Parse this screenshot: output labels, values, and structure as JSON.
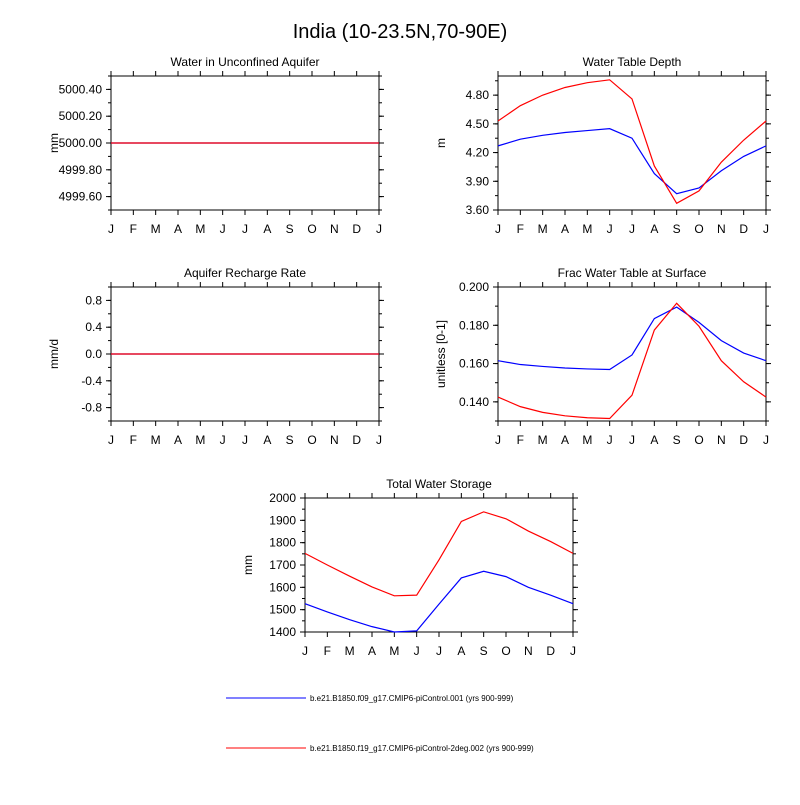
{
  "page_title": "India (10-23.5N,70-90E)",
  "colors": {
    "series1": "#0000ff",
    "series2": "#ff0000",
    "axis": "#000000"
  },
  "legend": [
    {
      "label": "b.e21.B1850.f09_g17.CMIP6-piControl.001 (yrs 900-999)",
      "color": "#0000ff"
    },
    {
      "label": "b.e21.B1850.f19_g17.CMIP6-piControl-2deg.002 (yrs 900-999)",
      "color": "#ff0000"
    }
  ],
  "chart_data": [
    {
      "type": "line",
      "title": "Water in Unconfined Aquifer",
      "ylabel": "mm",
      "xlabel": "",
      "categories": [
        "J",
        "F",
        "M",
        "A",
        "M",
        "J",
        "J",
        "A",
        "S",
        "O",
        "N",
        "D",
        "J"
      ],
      "ylim": [
        4999.5,
        5000.5
      ],
      "yticks": [
        4999.6,
        4999.8,
        5000.0,
        5000.2,
        5000.4
      ],
      "ytick_labels": [
        "4999.60",
        "4999.80",
        "5000.00",
        "5000.20",
        "5000.40"
      ],
      "series": [
        {
          "name": "b.e21.B1850.f09_g17.CMIP6-piControl.001 (yrs 900-999)",
          "color": "#0000ff",
          "values": [
            5000,
            5000,
            5000,
            5000,
            5000,
            5000,
            5000,
            5000,
            5000,
            5000,
            5000,
            5000,
            5000
          ]
        },
        {
          "name": "b.e21.B1850.f19_g17.CMIP6-piControl-2deg.002 (yrs 900-999)",
          "color": "#ff0000",
          "values": [
            5000,
            5000,
            5000,
            5000,
            5000,
            5000,
            5000,
            5000,
            5000,
            5000,
            5000,
            5000,
            5000
          ]
        }
      ]
    },
    {
      "type": "line",
      "title": "Water Table Depth",
      "ylabel": "m",
      "xlabel": "",
      "categories": [
        "J",
        "F",
        "M",
        "A",
        "M",
        "J",
        "J",
        "A",
        "S",
        "O",
        "N",
        "D",
        "J"
      ],
      "ylim": [
        3.6,
        5.0
      ],
      "yticks": [
        3.6,
        3.9,
        4.2,
        4.5,
        4.8
      ],
      "ytick_labels": [
        "3.60",
        "3.90",
        "4.20",
        "4.50",
        "4.80"
      ],
      "series": [
        {
          "name": "b.e21.B1850.f09_g17.CMIP6-piControl.001 (yrs 900-999)",
          "color": "#0000ff",
          "values": [
            4.27,
            4.34,
            4.38,
            4.41,
            4.43,
            4.45,
            4.35,
            3.98,
            3.77,
            3.83,
            4.01,
            4.16,
            4.27
          ]
        },
        {
          "name": "b.e21.B1850.f19_g17.CMIP6-piControl-2deg.002 (yrs 900-999)",
          "color": "#ff0000",
          "values": [
            4.53,
            4.69,
            4.8,
            4.88,
            4.93,
            4.96,
            4.76,
            4.06,
            3.67,
            3.8,
            4.1,
            4.33,
            4.53
          ]
        }
      ]
    },
    {
      "type": "line",
      "title": "Aquifer Recharge Rate",
      "ylabel": "mm/d",
      "xlabel": "",
      "categories": [
        "J",
        "F",
        "M",
        "A",
        "M",
        "J",
        "J",
        "A",
        "S",
        "O",
        "N",
        "D",
        "J"
      ],
      "ylim": [
        -1.0,
        1.0
      ],
      "yticks": [
        -0.8,
        -0.4,
        0.0,
        0.4,
        0.8
      ],
      "ytick_labels": [
        "-0.8",
        "-0.4",
        "0.0",
        "0.4",
        "0.8"
      ],
      "series": [
        {
          "name": "b.e21.B1850.f09_g17.CMIP6-piControl.001 (yrs 900-999)",
          "color": "#0000ff",
          "values": [
            0,
            0,
            0,
            0,
            0,
            0,
            0,
            0,
            0,
            0,
            0,
            0,
            0
          ]
        },
        {
          "name": "b.e21.B1850.f19_g17.CMIP6-piControl-2deg.002 (yrs 900-999)",
          "color": "#ff0000",
          "values": [
            0,
            0,
            0,
            0,
            0,
            0,
            0,
            0,
            0,
            0,
            0,
            0,
            0
          ]
        }
      ]
    },
    {
      "type": "line",
      "title": "Frac Water Table at Surface",
      "ylabel": "unitless [0-1]",
      "xlabel": "",
      "categories": [
        "J",
        "F",
        "M",
        "A",
        "M",
        "J",
        "J",
        "A",
        "S",
        "O",
        "N",
        "D",
        "J"
      ],
      "ylim": [
        0.13,
        0.2
      ],
      "yticks": [
        0.14,
        0.16,
        0.18,
        0.2
      ],
      "ytick_labels": [
        "0.140",
        "0.160",
        "0.180",
        "0.200"
      ],
      "series": [
        {
          "name": "b.e21.B1850.f09_g17.CMIP6-piControl.001 (yrs 900-999)",
          "color": "#0000ff",
          "values": [
            0.1615,
            0.1595,
            0.1585,
            0.1577,
            0.1572,
            0.1569,
            0.1645,
            0.1835,
            0.1895,
            0.1815,
            0.172,
            0.1655,
            0.1615
          ]
        },
        {
          "name": "b.e21.B1850.f19_g17.CMIP6-piControl-2deg.002 (yrs 900-999)",
          "color": "#ff0000",
          "values": [
            0.1425,
            0.1375,
            0.1345,
            0.1327,
            0.1317,
            0.1313,
            0.1435,
            0.1775,
            0.1915,
            0.1795,
            0.1615,
            0.1505,
            0.1425
          ]
        }
      ]
    },
    {
      "type": "line",
      "title": "Total Water Storage",
      "ylabel": "mm",
      "xlabel": "",
      "categories": [
        "J",
        "F",
        "M",
        "A",
        "M",
        "J",
        "J",
        "A",
        "S",
        "O",
        "N",
        "D",
        "J"
      ],
      "ylim": [
        1400,
        2000
      ],
      "yticks": [
        1400,
        1500,
        1600,
        1700,
        1800,
        1900,
        2000
      ],
      "ytick_labels": [
        "1400",
        "1500",
        "1600",
        "1700",
        "1800",
        "1900",
        "2000"
      ],
      "series": [
        {
          "name": "b.e21.B1850.f09_g17.CMIP6-piControl.001 (yrs 900-999)",
          "color": "#0000ff",
          "values": [
            1527,
            1490,
            1455,
            1424,
            1400,
            1405,
            1525,
            1642,
            1672,
            1648,
            1600,
            1565,
            1527
          ]
        },
        {
          "name": "b.e21.B1850.f19_g17.CMIP6-piControl-2deg.002 (yrs 900-999)",
          "color": "#ff0000",
          "values": [
            1752,
            1700,
            1650,
            1602,
            1562,
            1565,
            1723,
            1895,
            1938,
            1907,
            1852,
            1805,
            1752
          ]
        }
      ]
    }
  ]
}
